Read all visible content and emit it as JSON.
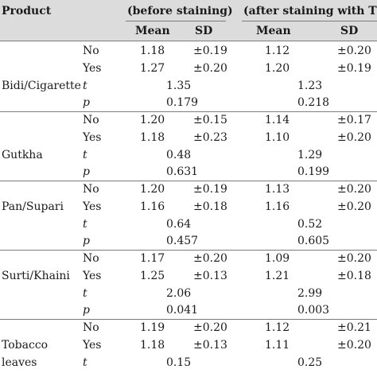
{
  "header": {
    "product": "Product",
    "group_before": "(before staining)",
    "group_after": "(after staining with TB)",
    "mean": "Mean",
    "sd": "SD"
  },
  "rows": [
    {
      "product": "",
      "label": "No",
      "italic": false,
      "m1": "1.18",
      "sd1": "±0.19",
      "m2": "1.12",
      "sd2": "±0.20",
      "stat1": "",
      "stat2": ""
    },
    {
      "product": "",
      "label": "Yes",
      "italic": false,
      "m1": "1.27",
      "sd1": "±0.20",
      "m2": "1.20",
      "sd2": "±0.19",
      "stat1": "",
      "stat2": ""
    },
    {
      "product": "Bidi/Cigarette",
      "label": "t",
      "italic": true,
      "m1": "",
      "sd1": "",
      "m2": "",
      "sd2": "",
      "stat1": "1.35",
      "stat2": "1.23"
    },
    {
      "product": "",
      "label": "p",
      "italic": true,
      "m1": "",
      "sd1": "",
      "m2": "",
      "sd2": "",
      "stat1": "0.179",
      "stat2": "0.218"
    },
    {
      "product": "",
      "label": "No",
      "italic": false,
      "m1": "1.20",
      "sd1": "±0.15",
      "m2": "1.14",
      "sd2": "±0.17",
      "stat1": "",
      "stat2": ""
    },
    {
      "product": "",
      "label": "Yes",
      "italic": false,
      "m1": "1.18",
      "sd1": "±0.23",
      "m2": "1.10",
      "sd2": "±0.20",
      "stat1": "",
      "stat2": ""
    },
    {
      "product": "Gutkha",
      "label": "t",
      "italic": true,
      "m1": "",
      "sd1": "",
      "m2": "",
      "sd2": "",
      "stat1": "0.48",
      "stat2": "1.29"
    },
    {
      "product": "",
      "label": "p",
      "italic": true,
      "m1": "",
      "sd1": "",
      "m2": "",
      "sd2": "",
      "stat1": "0.631",
      "stat2": "0.199"
    },
    {
      "product": "",
      "label": "No",
      "italic": false,
      "m1": "1.20",
      "sd1": "±0.19",
      "m2": "1.13",
      "sd2": "±0.20",
      "stat1": "",
      "stat2": ""
    },
    {
      "product": "Pan/Supari",
      "label": "Yes",
      "italic": false,
      "m1": "1.16",
      "sd1": "±0.18",
      "m2": "1.16",
      "sd2": "±0.20",
      "stat1": "",
      "stat2": ""
    },
    {
      "product": "",
      "label": "t",
      "italic": true,
      "m1": "",
      "sd1": "",
      "m2": "",
      "sd2": "",
      "stat1": "0.64",
      "stat2": "0.52"
    },
    {
      "product": "",
      "label": "p",
      "italic": true,
      "m1": "",
      "sd1": "",
      "m2": "",
      "sd2": "",
      "stat1": "0.457",
      "stat2": "0.605"
    },
    {
      "product": "",
      "label": "No",
      "italic": false,
      "m1": "1.17",
      "sd1": "±0.20",
      "m2": "1.09",
      "sd2": "±0.20",
      "stat1": "",
      "stat2": ""
    },
    {
      "product": "Surti/Khaini",
      "label": "Yes",
      "italic": false,
      "m1": "1.25",
      "sd1": "±0.13",
      "m2": "1.21",
      "sd2": "±0.18",
      "stat1": "",
      "stat2": ""
    },
    {
      "product": "",
      "label": "t",
      "italic": true,
      "m1": "",
      "sd1": "",
      "m2": "",
      "sd2": "",
      "stat1": "2.06",
      "stat2": "2.99"
    },
    {
      "product": "",
      "label": "p",
      "italic": true,
      "m1": "",
      "sd1": "",
      "m2": "",
      "sd2": "",
      "stat1": "0.041",
      "stat2": "0.003"
    },
    {
      "product": "",
      "label": "No",
      "italic": false,
      "m1": "1.19",
      "sd1": "±0.20",
      "m2": "1.12",
      "sd2": "±0.21",
      "stat1": "",
      "stat2": ""
    },
    {
      "product": "Tobacco",
      "label": "Yes",
      "italic": false,
      "m1": "1.18",
      "sd1": "±0.13",
      "m2": "1.11",
      "sd2": "±0.20",
      "stat1": "",
      "stat2": ""
    },
    {
      "product": "leaves",
      "label": "t",
      "italic": true,
      "m1": "",
      "sd1": "",
      "m2": "",
      "sd2": "",
      "stat1": "0.15",
      "stat2": "0.25"
    }
  ]
}
